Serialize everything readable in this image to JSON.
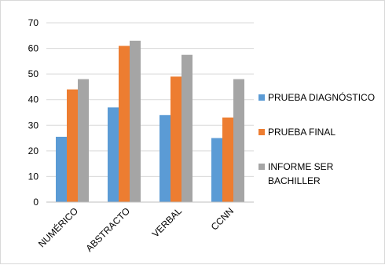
{
  "chart_data": {
    "type": "bar",
    "categories": [
      "NUMÉRICO",
      "ABSTRACTO",
      "VERBAL",
      "CCNN"
    ],
    "series": [
      {
        "name": "PRUEBA DIAGNÓSTICO",
        "color": "#5B9BD5",
        "values": [
          25.5,
          37,
          34,
          25
        ]
      },
      {
        "name": "PRUEBA FINAL",
        "color": "#ED7D31",
        "values": [
          44,
          61,
          49,
          33
        ]
      },
      {
        "name": "INFORME SER BACHILLER",
        "color": "#A5A5A5",
        "values": [
          48,
          63,
          57.5,
          48
        ]
      }
    ],
    "ylim": [
      0,
      70
    ],
    "yticks": [
      0,
      10,
      20,
      30,
      40,
      50,
      60,
      70
    ],
    "grid": true,
    "legend": "right",
    "title": "",
    "xlabel": "",
    "ylabel": ""
  }
}
